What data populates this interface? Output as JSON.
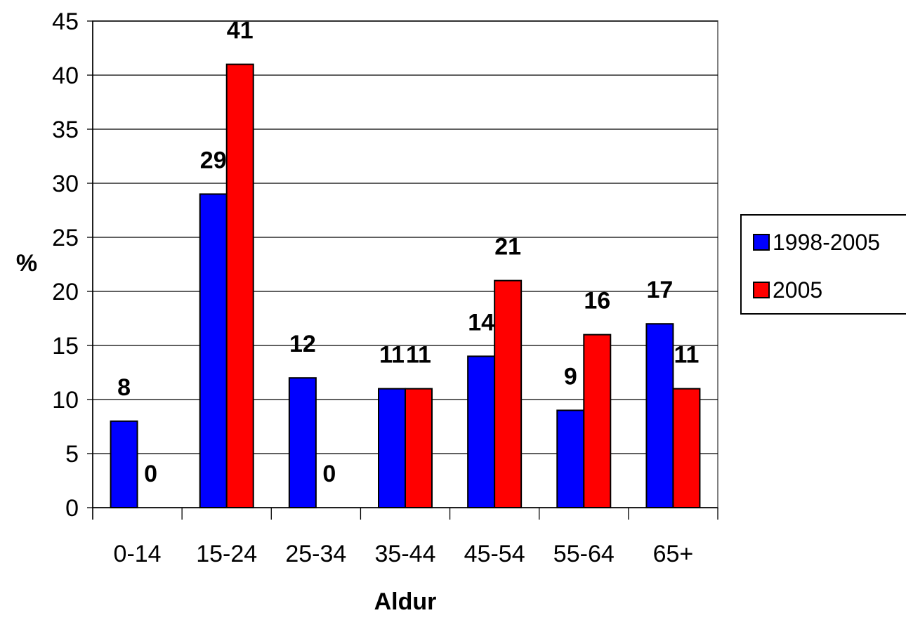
{
  "chart_data": {
    "type": "bar",
    "categories": [
      "0-14",
      "15-24",
      "25-34",
      "35-44",
      "45-54",
      "55-64",
      "65+"
    ],
    "series": [
      {
        "name": "1998-2005",
        "values": [
          8,
          29,
          12,
          11,
          14,
          9,
          17
        ],
        "color": "#0000ff"
      },
      {
        "name": "2005",
        "values": [
          0,
          41,
          0,
          11,
          21,
          16,
          11
        ],
        "color": "#ff0000"
      }
    ],
    "xlabel": "Aldur",
    "ylabel": "%",
    "ylim": [
      0,
      45
    ],
    "yticks": [
      0,
      5,
      10,
      15,
      20,
      25,
      30,
      35,
      40,
      45
    ],
    "grid": true,
    "legend_position": "right"
  }
}
